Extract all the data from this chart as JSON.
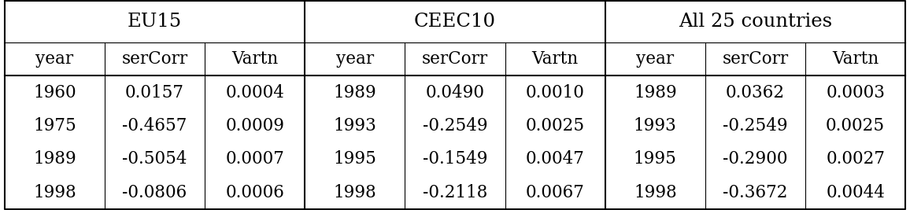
{
  "group_headers": [
    "EU15",
    "CEEC10",
    "All 25 countries"
  ],
  "col_headers": [
    "year",
    "serCorr",
    "Vartn"
  ],
  "eu15": [
    [
      "1960",
      "0.0157",
      "0.0004"
    ],
    [
      "1975",
      "-0.4657",
      "0.0009"
    ],
    [
      "1989",
      "-0.5054",
      "0.0007"
    ],
    [
      "1998",
      "-0.0806",
      "0.0006"
    ]
  ],
  "ceec10": [
    [
      "1989",
      "0.0490",
      "0.0010"
    ],
    [
      "1993",
      "-0.2549",
      "0.0025"
    ],
    [
      "1995",
      "-0.1549",
      "0.0047"
    ],
    [
      "1998",
      "-0.2118",
      "0.0067"
    ]
  ],
  "all25": [
    [
      "1989",
      "0.0362",
      "0.0003"
    ],
    [
      "1993",
      "-0.2549",
      "0.0025"
    ],
    [
      "1995",
      "-0.2900",
      "0.0027"
    ],
    [
      "1998",
      "-0.3672",
      "0.0044"
    ]
  ],
  "bg_color": "#ffffff",
  "text_color": "#000000",
  "line_color": "#000000",
  "font_size": 15.5,
  "header_font_size": 17.5,
  "figwidth": 11.56,
  "figheight": 2.67,
  "dpi": 100
}
